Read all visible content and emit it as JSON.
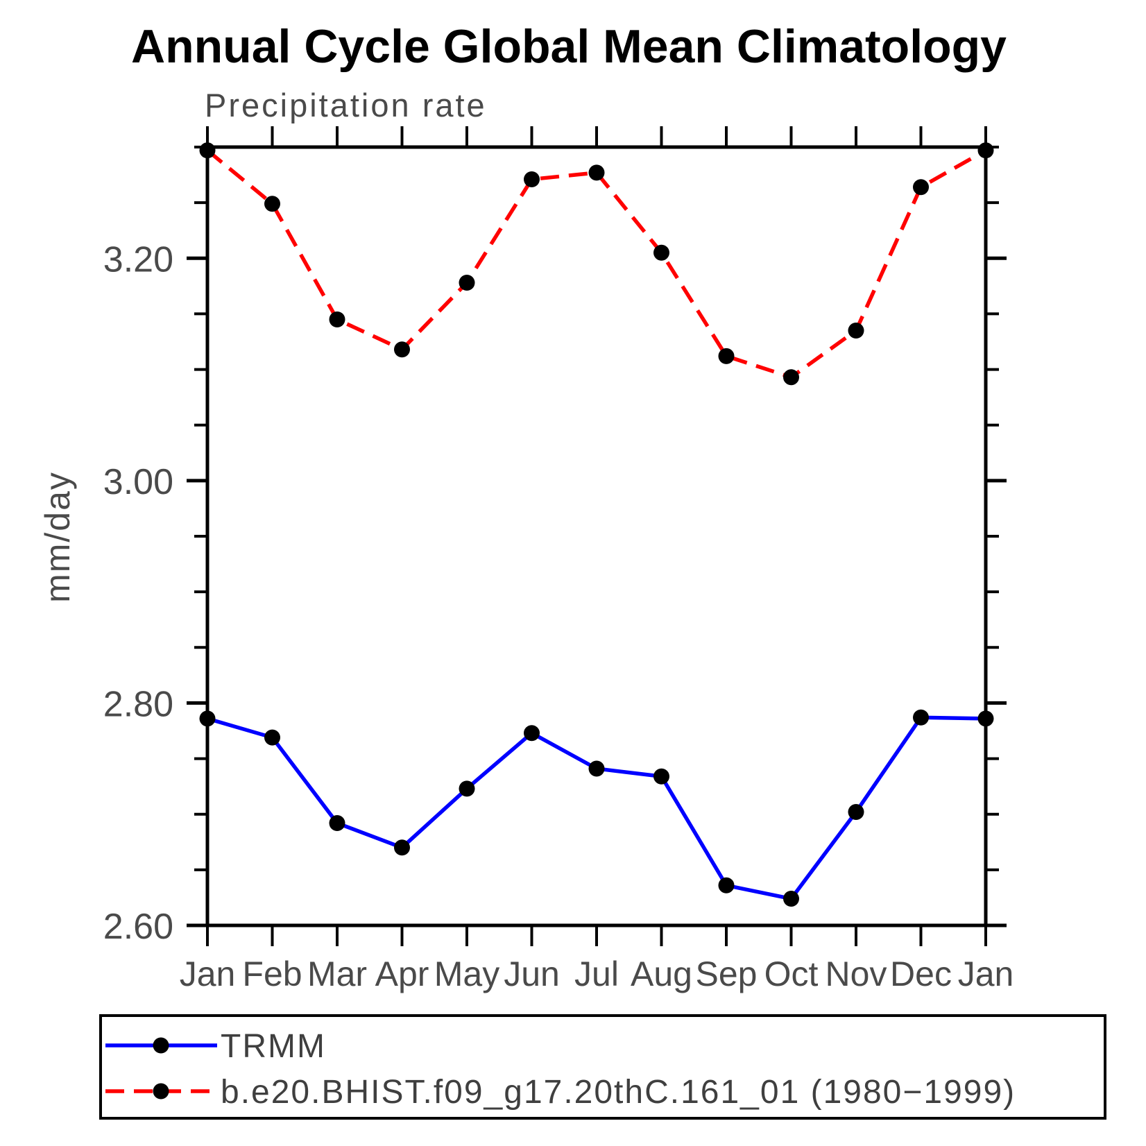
{
  "header": {
    "title": "Annual Cycle Global Mean Climatology",
    "subtitle": "Precipitation rate"
  },
  "chart_data": {
    "type": "line",
    "title": "Annual Cycle Global Mean Climatology",
    "subtitle": "Precipitation rate",
    "xlabel": "",
    "ylabel": "mm/day",
    "ylim": [
      2.6,
      3.3
    ],
    "ytick_major": [
      2.6,
      2.8,
      3.0,
      3.2
    ],
    "ytick_major_labels": [
      "2.60",
      "2.80",
      "3.00",
      "3.20"
    ],
    "ytick_minor_step": 0.05,
    "grid": false,
    "legend_position": "bottom-left-box",
    "categories": [
      "Jan",
      "Feb",
      "Mar",
      "Apr",
      "May",
      "Jun",
      "Jul",
      "Aug",
      "Sep",
      "Oct",
      "Nov",
      "Dec",
      "Jan"
    ],
    "series": [
      {
        "name": "TRMM",
        "line_style": "solid",
        "color": "#0000ff",
        "marker": "filled-circle",
        "marker_color": "#000000",
        "values": [
          2.786,
          2.769,
          2.692,
          2.67,
          2.723,
          2.773,
          2.741,
          2.734,
          2.636,
          2.624,
          2.702,
          2.787,
          2.786
        ]
      },
      {
        "name": "b.e20.BHIST.f09_g17.20thC.161_01 (1980−1999)",
        "line_style": "dashed",
        "color": "#ff0000",
        "marker": "filled-circle",
        "marker_color": "#000000",
        "values": [
          3.297,
          3.249,
          3.145,
          3.118,
          3.178,
          3.271,
          3.277,
          3.205,
          3.112,
          3.093,
          3.135,
          3.264,
          3.297
        ]
      }
    ]
  }
}
